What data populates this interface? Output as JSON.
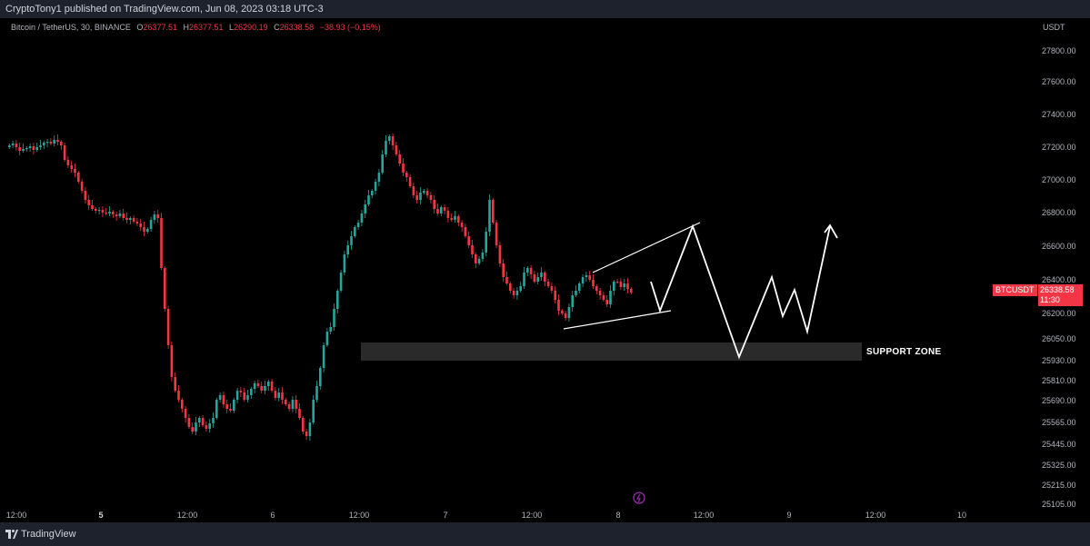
{
  "header": {
    "published_text": "CryptoTony1 published on TradingView.com, Jun 08, 2023 03:18 UTC-3"
  },
  "legend": {
    "symbol_text": "Bitcoin / TetherUS, 30, BINANCE",
    "open_label": "O",
    "open_value": "26377.51",
    "high_label": "H",
    "high_value": "26377.51",
    "low_label": "L",
    "low_value": "26290.19",
    "close_label": "C",
    "close_value": "26338.58",
    "change_text": "−38.93 (−0.15%)"
  },
  "price_axis": {
    "currency": "USDT",
    "ticks": [
      "27800.00",
      "27600.00",
      "27400.00",
      "27200.00",
      "27000.00",
      "26800.00",
      "26600.00",
      "26400.00",
      "26200.00",
      "26050.00",
      "25930.00",
      "25810.00",
      "25690.00",
      "25565.00",
      "25445.00",
      "25325.00",
      "25215.00",
      "25105.00"
    ]
  },
  "time_axis": {
    "ticks": [
      {
        "label": "12:00",
        "bold": false
      },
      {
        "label": "5",
        "bold": true
      },
      {
        "label": "12:00",
        "bold": false
      },
      {
        "label": "6",
        "bold": false
      },
      {
        "label": "12:00",
        "bold": false
      },
      {
        "label": "7",
        "bold": false
      },
      {
        "label": "12:00",
        "bold": false
      },
      {
        "label": "8",
        "bold": false
      },
      {
        "label": "12:00",
        "bold": false
      },
      {
        "label": "9",
        "bold": false
      },
      {
        "label": "12:00",
        "bold": false
      },
      {
        "label": "10",
        "bold": false
      }
    ]
  },
  "annotations": {
    "support_label": "SUPPORT ZONE"
  },
  "current_price": {
    "symbol": "BTCUSDT",
    "price": "26338.58",
    "countdown": "11:30"
  },
  "footer": {
    "brand": "TradingView"
  },
  "colors": {
    "up": "#26a69a",
    "down": "#f23645",
    "background": "#000000",
    "panel": "#1e222d"
  },
  "icons": {
    "logo": "tradingview-logo-icon",
    "flash": "lightning-icon"
  }
}
